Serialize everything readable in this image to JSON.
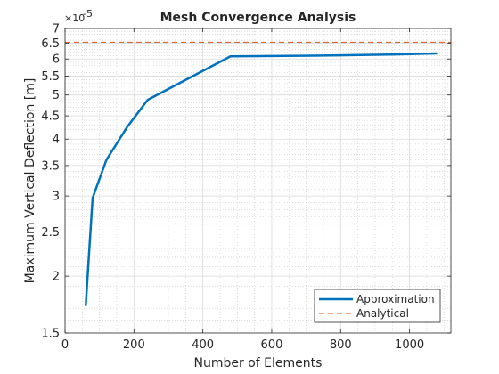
{
  "chart_data": {
    "type": "line",
    "title": "Mesh Convergence Analysis",
    "xlabel": "Number of Elements",
    "ylabel": "Maximum Vertical Deflection [m]",
    "y_scale": "log",
    "y_exponent_label": "×10",
    "y_exponent_power": "-5",
    "xlim": [
      0,
      1120
    ],
    "ylim": [
      1.5e-05,
      7e-05
    ],
    "x_ticks": [
      0,
      200,
      400,
      600,
      800,
      1000
    ],
    "x_tick_labels": [
      "0",
      "200",
      "400",
      "600",
      "800",
      "1000"
    ],
    "y_ticks": [
      1.5e-05,
      2e-05,
      2.5e-05,
      3e-05,
      3.5e-05,
      4e-05,
      4.5e-05,
      5e-05,
      5.5e-05,
      6e-05,
      6.5e-05,
      7e-05
    ],
    "y_tick_labels": [
      "1.5",
      "2",
      "2.5",
      "3",
      "3.5",
      "4",
      "4.5",
      "5",
      "5.5",
      "6",
      "6.5",
      "7"
    ],
    "grid": true,
    "minor_grid": true,
    "legend_position": "bottom-right",
    "series": [
      {
        "name": "Approximation",
        "style": "solid",
        "color": "#0072BD",
        "x": [
          60,
          80,
          120,
          180,
          240,
          480,
          720,
          960,
          1080
        ],
        "y": [
          1.72e-05,
          2.97e-05,
          3.6e-05,
          4.25e-05,
          4.88e-05,
          6.08e-05,
          6.1e-05,
          6.14e-05,
          6.17e-05
        ]
      },
      {
        "name": "Analytical",
        "style": "dashed",
        "color": "#D95319",
        "x": [
          0,
          1120
        ],
        "y": [
          6.53e-05,
          6.53e-05
        ]
      }
    ]
  }
}
